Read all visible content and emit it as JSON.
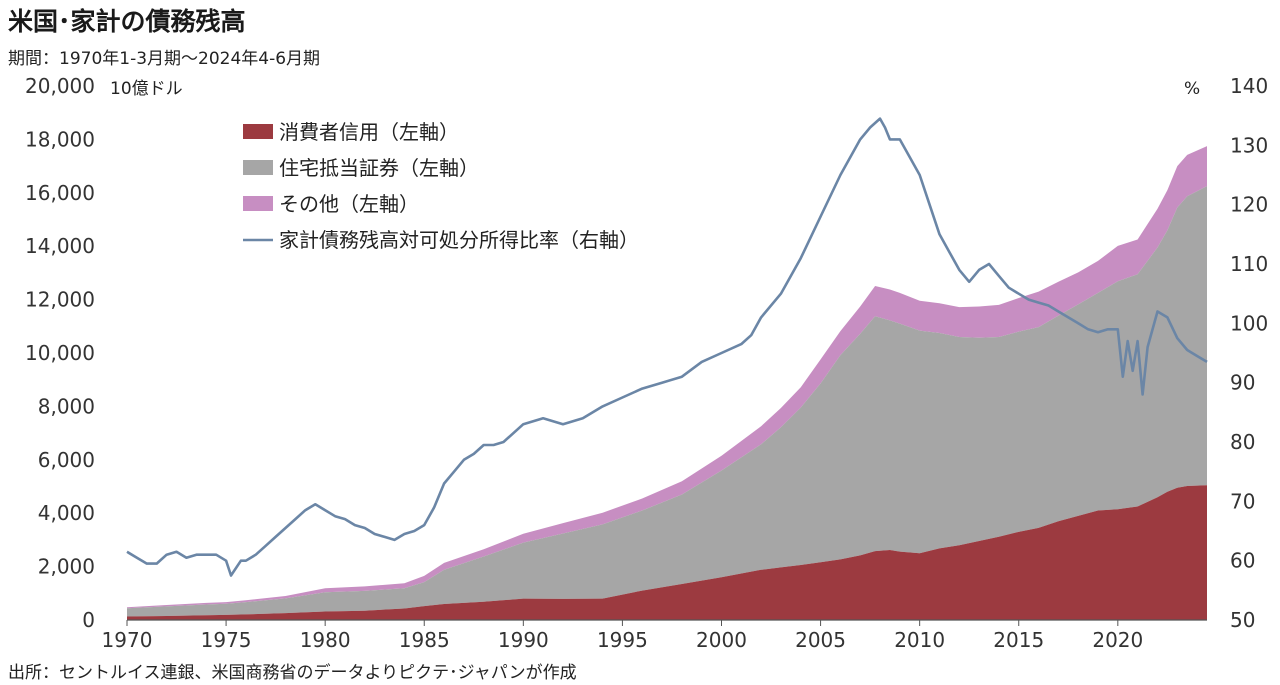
{
  "header": {
    "title": "米国･家計の債務残高",
    "period": "期間：1970年1-3月期～2024年4-6月期"
  },
  "footer": {
    "source": "出所：セントルイス連銀、米国商務省のデータよりピクテ･ジャパンが作成"
  },
  "chart_data": {
    "type": "area",
    "left_unit": "10億ドル",
    "right_unit": "%",
    "xlim": [
      1970,
      2024.5
    ],
    "ylim_left": [
      0,
      20000
    ],
    "ylim_right": [
      50,
      140
    ],
    "x_ticks": [
      "1970",
      "1975",
      "1980",
      "1985",
      "1990",
      "1995",
      "2000",
      "2005",
      "2010",
      "2015",
      "2020"
    ],
    "y_left_ticks": [
      "0",
      "2,000",
      "4,000",
      "6,000",
      "8,000",
      "10,000",
      "12,000",
      "14,000",
      "16,000",
      "18,000",
      "20,000"
    ],
    "y_right_ticks": [
      "50",
      "60",
      "70",
      "80",
      "90",
      "100",
      "110",
      "120",
      "130",
      "140"
    ],
    "colors": {
      "consumer": "#9c3a40",
      "mortgage": "#a6a6a6",
      "other": "#c78ec2",
      "ratio": "#6b86a6"
    },
    "legend": [
      {
        "key": "consumer",
        "label": "消費者信用（左軸）",
        "kind": "box"
      },
      {
        "key": "mortgage",
        "label": "住宅抵当証券（左軸）",
        "kind": "box"
      },
      {
        "key": "other",
        "label": "その他（左軸）",
        "kind": "box"
      },
      {
        "key": "ratio",
        "label": "家計債務残高対可処分所得比率（右軸）",
        "kind": "line"
      }
    ],
    "legend_position": "top-left",
    "stack_series": {
      "x": [
        1970,
        1972,
        1974,
        1975,
        1976,
        1978,
        1980,
        1982,
        1984,
        1985,
        1986,
        1988,
        1990,
        1992,
        1994,
        1996,
        1998,
        2000,
        2002,
        2003,
        2004,
        2005,
        2006,
        2007,
        2007.75,
        2008.5,
        2009,
        2010,
        2011,
        2012,
        2013,
        2014,
        2015,
        2016,
        2017,
        2018,
        2019,
        2020,
        2021,
        2022,
        2022.5,
        2023,
        2023.5,
        2024.5
      ],
      "consumer": [
        130,
        150,
        180,
        190,
        210,
        260,
        320,
        350,
        430,
        520,
        600,
        680,
        800,
        790,
        800,
        1100,
        1350,
        1600,
        1880,
        1970,
        2060,
        2160,
        2270,
        2420,
        2580,
        2620,
        2560,
        2500,
        2680,
        2800,
        2960,
        3120,
        3300,
        3450,
        3700,
        3900,
        4100,
        4150,
        4250,
        4600,
        4800,
        4950,
        5020,
        5050
      ],
      "mortgage": [
        310,
        360,
        400,
        420,
        460,
        550,
        720,
        740,
        760,
        900,
        1280,
        1700,
        2100,
        2450,
        2780,
        3000,
        3350,
        4000,
        4700,
        5250,
        5900,
        6700,
        7650,
        8300,
        8800,
        8600,
        8540,
        8340,
        8070,
        7800,
        7610,
        7480,
        7500,
        7520,
        7700,
        7920,
        8150,
        8540,
        8700,
        9350,
        9800,
        10500,
        10850,
        11200
      ],
      "other": [
        40,
        50,
        60,
        60,
        70,
        90,
        150,
        170,
        190,
        230,
        260,
        270,
        330,
        390,
        440,
        450,
        500,
        550,
        680,
        720,
        760,
        900,
        900,
        1020,
        1130,
        1160,
        1150,
        1120,
        1110,
        1120,
        1170,
        1200,
        1260,
        1330,
        1270,
        1200,
        1200,
        1320,
        1300,
        1450,
        1500,
        1550,
        1550,
        1500
      ]
    },
    "ratio_series": {
      "x": [
        1970,
        1970.5,
        1971,
        1971.5,
        1972,
        1972.5,
        1973,
        1973.5,
        1974,
        1974.5,
        1975,
        1975.25,
        1975.75,
        1976,
        1976.5,
        1977,
        1977.5,
        1978,
        1978.5,
        1979,
        1979.5,
        1980,
        1980.5,
        1981,
        1981.5,
        1982,
        1982.5,
        1983,
        1983.5,
        1984,
        1984.5,
        1985,
        1985.5,
        1986,
        1986.5,
        1987,
        1987.5,
        1988,
        1988.5,
        1989,
        1990,
        1991,
        1992,
        1993,
        1994,
        1995,
        1996,
        1997,
        1998,
        1999,
        2000,
        2001,
        2001.5,
        2002,
        2003,
        2004,
        2005,
        2006,
        2007,
        2007.5,
        2008,
        2008.25,
        2008.5,
        2009,
        2009.5,
        2010,
        2010.5,
        2011,
        2011.5,
        2012,
        2012.5,
        2013,
        2013.5,
        2014,
        2014.5,
        2015,
        2015.5,
        2016,
        2016.5,
        2017,
        2017.5,
        2018,
        2018.5,
        2019,
        2019.5,
        2020,
        2020.25,
        2020.5,
        2020.75,
        2021,
        2021.25,
        2021.5,
        2022,
        2022.5,
        2023,
        2023.5,
        2024,
        2024.5
      ],
      "ratio": [
        61.5,
        60.5,
        59.5,
        59.5,
        61,
        61.5,
        60.5,
        61,
        61,
        61,
        60,
        57.5,
        60,
        60,
        61,
        62.5,
        64,
        65.5,
        67,
        68.5,
        69.5,
        68.5,
        67.5,
        67,
        66,
        65.5,
        64.5,
        64,
        63.5,
        64.5,
        65,
        66,
        69,
        73,
        75,
        77,
        78,
        79.5,
        79.5,
        80,
        83,
        84,
        83,
        84,
        86,
        87.5,
        89,
        90,
        91,
        93.5,
        95,
        96.5,
        98,
        101,
        105,
        111,
        118,
        125,
        131,
        133,
        134.5,
        133,
        131,
        131,
        128,
        125,
        120,
        115,
        112,
        109,
        107,
        109,
        110,
        108,
        106,
        105,
        104,
        103.5,
        103,
        102,
        101,
        100,
        99,
        98.5,
        99,
        99,
        91,
        97,
        92,
        97,
        88,
        96,
        102,
        101,
        97.5,
        95.5,
        94.5,
        93.5
      ]
    }
  }
}
